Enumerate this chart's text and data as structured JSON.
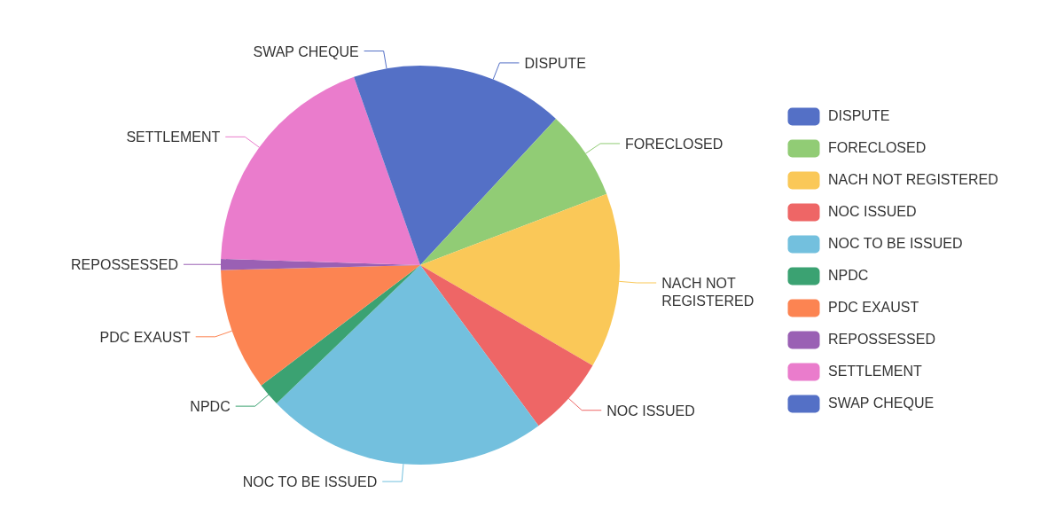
{
  "chart_data": {
    "type": "pie",
    "categories": [
      "DISPUTE",
      "FORECLOSED",
      "NACH NOT REGISTERED",
      "NOC ISSUED",
      "NOC TO BE ISSUED",
      "NPDC",
      "PDC EXAUST",
      "REPOSSESSED",
      "SETTLEMENT",
      "SWAP CHEQUE"
    ],
    "values": [
      11.9,
      7.3,
      14.2,
      6.5,
      22.9,
      1.9,
      9.9,
      0.9,
      19.1,
      5.4
    ],
    "colors": [
      "#5470c6",
      "#91cc75",
      "#fac858",
      "#ee6666",
      "#73c0de",
      "#3ba272",
      "#fc8452",
      "#9a60b4",
      "#ea7ccc",
      "#5470c6"
    ],
    "legend": "right"
  }
}
